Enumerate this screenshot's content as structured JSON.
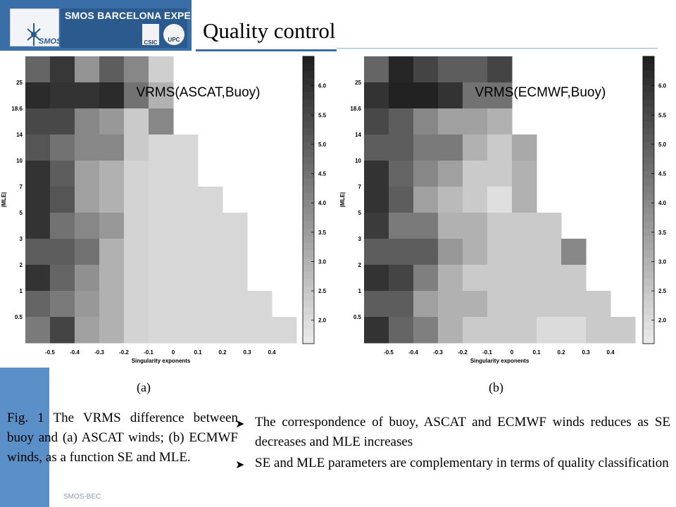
{
  "header": {
    "logo_text": "SMOS BARCELONA EXPERT CENTRE",
    "logo_smos": "SMOS",
    "logo_csic": "CSIC",
    "logo_upc": "UPC",
    "title": "Quality control"
  },
  "colors": {
    "brand": "#3a6ea6",
    "sidebar_accent": "#5a8fc8"
  },
  "chart_data": [
    {
      "type": "heatmap",
      "label": "(a)",
      "annotation": "VRMS(ASCAT,Buoy)",
      "xlabel": "Singularity exponents",
      "ylabel": "|MLE|",
      "x_ticks": [
        "-0.5",
        "-0.4",
        "-0.3",
        "-0.2",
        "-0.1",
        "0",
        "0.1",
        "0.2",
        "0.3",
        "0.4"
      ],
      "y_ticks": [
        "0.5",
        "1",
        "2",
        "3",
        "5",
        "7",
        "10",
        "14",
        "18.6",
        "25"
      ],
      "colorbar_ticks": [
        "2.0",
        "2.5",
        "3.0",
        "3.5",
        "4.0",
        "4.5",
        "5.0",
        "5.5",
        "6.0"
      ],
      "colorbar_range": [
        1.6,
        6.5
      ],
      "grid": [
        [
          4.8,
          5.9,
          3.7,
          5.0,
          4.0,
          2.3,
          null,
          null,
          null,
          null,
          null
        ],
        [
          6.2,
          6.0,
          6.0,
          6.2,
          4.5,
          3.0,
          null,
          null,
          null,
          null,
          null
        ],
        [
          5.5,
          5.5,
          4.0,
          3.6,
          2.4,
          4.0,
          null,
          null,
          null,
          null,
          null
        ],
        [
          5.2,
          4.5,
          4.0,
          4.0,
          2.4,
          2.1,
          2.1,
          null,
          null,
          null,
          null
        ],
        [
          6.0,
          5.0,
          3.4,
          3.0,
          2.2,
          2.1,
          2.1,
          null,
          null,
          null,
          null
        ],
        [
          6.0,
          5.2,
          3.4,
          3.0,
          2.2,
          2.1,
          2.1,
          2.1,
          null,
          null,
          null
        ],
        [
          6.0,
          4.5,
          4.0,
          3.6,
          2.2,
          2.1,
          2.1,
          2.1,
          2.1,
          null,
          null
        ],
        [
          5.0,
          5.0,
          4.5,
          3.0,
          2.2,
          2.1,
          2.1,
          2.1,
          2.1,
          null,
          null
        ],
        [
          6.0,
          4.8,
          3.8,
          3.0,
          2.2,
          2.1,
          2.1,
          2.1,
          2.1,
          null,
          null
        ],
        [
          4.8,
          4.3,
          3.6,
          3.0,
          2.2,
          2.1,
          2.1,
          2.1,
          2.1,
          2.1,
          null
        ],
        [
          4.3,
          5.6,
          3.4,
          3.0,
          2.2,
          2.1,
          2.1,
          2.1,
          2.1,
          2.1,
          2.1
        ]
      ]
    },
    {
      "type": "heatmap",
      "label": "(b)",
      "annotation": "VRMS(ECMWF,Buoy)",
      "xlabel": "Singularity exponents",
      "ylabel": "|MLE|",
      "x_ticks": [
        "-0.5",
        "-0.4",
        "-0.3",
        "-0.2",
        "-0.1",
        "0",
        "0.1",
        "0.2",
        "0.3",
        "0.4"
      ],
      "y_ticks": [
        "0.5",
        "1",
        "2",
        "3",
        "5",
        "7",
        "10",
        "14",
        "18.6",
        "25"
      ],
      "colorbar_ticks": [
        "2.0",
        "2.5",
        "3.0",
        "3.5",
        "4.0",
        "4.5",
        "5.0",
        "5.5",
        "6.0"
      ],
      "colorbar_range": [
        1.6,
        6.5
      ],
      "grid": [
        [
          4.8,
          6.3,
          5.6,
          5.0,
          5.0,
          5.6,
          null,
          null,
          null,
          null,
          null
        ],
        [
          6.0,
          6.4,
          6.4,
          6.0,
          4.5,
          4.5,
          null,
          null,
          null,
          null,
          null
        ],
        [
          5.5,
          5.0,
          4.0,
          3.4,
          3.4,
          3.0,
          null,
          null,
          null,
          null,
          null
        ],
        [
          5.0,
          5.0,
          4.3,
          4.3,
          3.0,
          2.4,
          3.2,
          null,
          null,
          null,
          null
        ],
        [
          6.0,
          4.8,
          4.0,
          3.4,
          2.4,
          2.4,
          3.0,
          null,
          null,
          null,
          null
        ],
        [
          6.0,
          5.0,
          3.4,
          2.8,
          2.4,
          1.9,
          3.0,
          null,
          null,
          null,
          null
        ],
        [
          5.8,
          4.3,
          4.3,
          3.0,
          3.0,
          2.4,
          2.4,
          2.4,
          null,
          null,
          null
        ],
        [
          5.0,
          5.0,
          5.0,
          3.6,
          3.0,
          2.4,
          2.4,
          2.4,
          4.0,
          null,
          null
        ],
        [
          6.0,
          5.6,
          4.2,
          3.0,
          2.4,
          2.4,
          2.4,
          2.4,
          2.4,
          null,
          null
        ],
        [
          5.0,
          5.0,
          3.4,
          3.0,
          3.0,
          2.4,
          2.4,
          2.4,
          2.4,
          2.4,
          null
        ],
        [
          6.0,
          4.8,
          4.2,
          3.0,
          2.4,
          2.4,
          2.4,
          2.0,
          2.0,
          2.4,
          2.4
        ]
      ]
    }
  ],
  "fig_caption": "Fig. 1 The VRMS difference between buoy and (a) ASCAT winds; (b) ECMWF winds, as a function SE and MLE.",
  "bullets": [
    "The correspondence of buoy, ASCAT and ECMWF winds reduces as SE decreases and MLE increases",
    "SE and MLE parameters are complementary in terms of quality classification"
  ],
  "footer": "SMOS-BEC"
}
